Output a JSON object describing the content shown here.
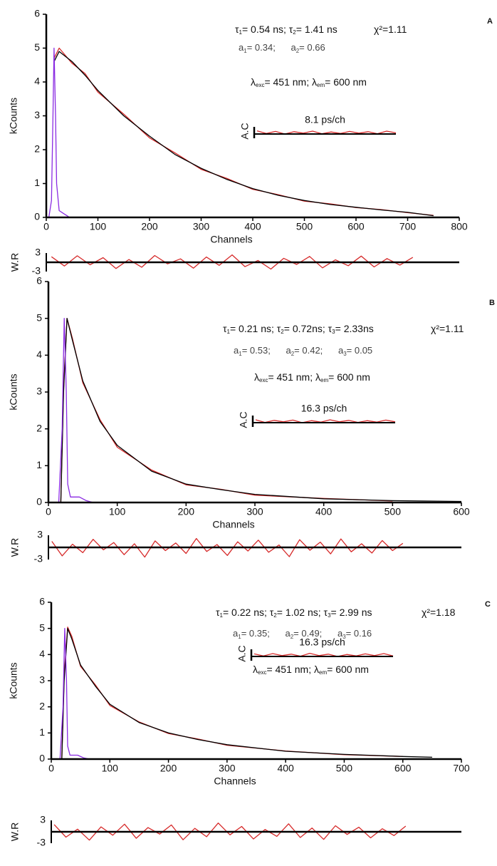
{
  "chart_data": [
    {
      "type": "line",
      "label": "A",
      "x_label": "Channels",
      "y_label": "kCounts",
      "xlim": [
        0,
        800
      ],
      "xticks": [
        0,
        100,
        200,
        300,
        400,
        500,
        600,
        700,
        800
      ],
      "ylim": [
        0,
        6
      ],
      "yticks": [
        0,
        1,
        2,
        3,
        4,
        5,
        6
      ],
      "series": [
        {
          "color": "#8a2be2",
          "x": [
            5,
            10,
            13,
            15,
            18,
            20,
            25,
            30,
            35,
            40,
            45
          ],
          "values": [
            0,
            0.5,
            3,
            5,
            3,
            1,
            0.2,
            0.15,
            0.1,
            0.05,
            0
          ]
        },
        {
          "color": "#d62a2a",
          "x": [
            15,
            25,
            50,
            75,
            100,
            150,
            200,
            250,
            300,
            350,
            400,
            450,
            500,
            550,
            600,
            650,
            700,
            750
          ],
          "values": [
            4.7,
            5.0,
            4.55,
            4.25,
            3.7,
            3.05,
            2.35,
            1.9,
            1.42,
            1.15,
            0.83,
            0.67,
            0.48,
            0.4,
            0.29,
            0.23,
            0.14,
            0.06
          ]
        },
        {
          "color": "#000000",
          "x": [
            15,
            25,
            50,
            75,
            100,
            150,
            200,
            250,
            300,
            350,
            400,
            450,
            500,
            550,
            600,
            650,
            700,
            750
          ],
          "values": [
            4.6,
            4.9,
            4.6,
            4.2,
            3.75,
            3.0,
            2.4,
            1.85,
            1.45,
            1.12,
            0.85,
            0.65,
            0.5,
            0.38,
            0.3,
            0.22,
            0.15,
            0.05
          ]
        }
      ],
      "residuals": {
        "label": "W.R",
        "color": "#d62a2a",
        "ylim": [
          -3,
          3
        ],
        "yticks": [
          3,
          -3
        ],
        "x": [
          10,
          35,
          60,
          85,
          110,
          135,
          160,
          185,
          210,
          235,
          260,
          285,
          310,
          335,
          360,
          385,
          410,
          435,
          460,
          485,
          510,
          535,
          560,
          585,
          610,
          635,
          660,
          685,
          710
        ],
        "values": [
          1.8,
          -1.2,
          2.1,
          -0.8,
          1.5,
          -2.0,
          0.9,
          -1.6,
          2.2,
          -0.5,
          1.1,
          -1.9,
          1.7,
          -1.0,
          2.4,
          -1.4,
          0.6,
          -2.2,
          1.3,
          -0.7,
          1.9,
          -1.8,
          0.8,
          -1.1,
          2.0,
          -1.5,
          1.2,
          -0.9,
          1.6
        ]
      },
      "annotations": [
        [
          "τ",
          "1",
          "= 0.54 ns; τ",
          "2",
          "= 1.41 ns"
        ],
        [
          "χ²=1.11"
        ],
        [
          "a",
          "1",
          "= 0.34;      a",
          "2",
          "= 0.66"
        ],
        [
          "λ",
          "exc",
          "= 451 nm; λ",
          "em",
          "= 600 nm"
        ]
      ],
      "autocorrelation": {
        "label": "A.C",
        "note": "8.1 ps/ch",
        "color": "#d62a2a",
        "values": [
          0.6,
          -0.3,
          0.4,
          -0.5,
          0.3,
          -0.2,
          0.5,
          -0.4,
          0.2,
          -0.3,
          0.4,
          -0.2,
          0.3,
          -0.4,
          0.5,
          -0.1
        ]
      }
    },
    {
      "type": "line",
      "label": "B",
      "x_label": "Channels",
      "y_label": "kCounts",
      "xlim": [
        0,
        600
      ],
      "xticks": [
        0,
        100,
        200,
        300,
        400,
        500,
        600
      ],
      "ylim": [
        0,
        6
      ],
      "yticks": [
        0,
        1,
        2,
        3,
        4,
        5,
        6
      ],
      "series": [
        {
          "color": "#8a2be2",
          "x": [
            15,
            20,
            23,
            26,
            28,
            32,
            45,
            55,
            65
          ],
          "values": [
            0,
            2,
            5,
            3,
            0.5,
            0.15,
            0.15,
            0.05,
            0
          ]
        },
        {
          "color": "#d62a2a",
          "x": [
            18,
            22,
            27,
            35,
            50,
            75,
            100,
            150,
            200,
            250,
            300,
            400,
            500
          ],
          "values": [
            0,
            3.1,
            5.0,
            4.45,
            3.25,
            2.25,
            1.5,
            0.88,
            0.48,
            0.36,
            0.2,
            0.11,
            0.04
          ]
        },
        {
          "color": "#000000",
          "x": [
            18,
            22,
            27,
            35,
            50,
            75,
            100,
            150,
            200,
            250,
            300,
            400,
            500,
            600
          ],
          "values": [
            0,
            3,
            5.0,
            4.4,
            3.3,
            2.2,
            1.55,
            0.85,
            0.5,
            0.35,
            0.22,
            0.1,
            0.05,
            0.03
          ]
        }
      ],
      "residuals": {
        "label": "W.R",
        "color": "#d62a2a",
        "ylim": [
          -3,
          3
        ],
        "yticks": [
          3,
          -3
        ],
        "x": [
          5,
          20,
          35,
          50,
          65,
          80,
          95,
          110,
          125,
          140,
          155,
          170,
          185,
          200,
          215,
          230,
          245,
          260,
          275,
          290,
          305,
          320,
          335,
          350,
          365,
          380,
          395,
          410,
          425,
          440,
          455,
          470,
          485,
          500,
          515
        ],
        "values": [
          1.5,
          -2.1,
          0.8,
          -1.3,
          2.0,
          -0.6,
          1.2,
          -1.8,
          0.9,
          -2.4,
          1.6,
          -0.8,
          1.1,
          -1.5,
          2.2,
          -1.0,
          0.7,
          -2.0,
          1.4,
          -0.9,
          1.8,
          -1.2,
          0.6,
          -2.3,
          1.9,
          -0.7,
          1.3,
          -1.6,
          2.1,
          -1.1,
          0.9,
          -1.4,
          1.7,
          -0.8,
          1.0
        ]
      },
      "annotations": [
        [
          "τ",
          "1",
          "= 0.21 ns; τ",
          "2",
          "= 0.72ns; τ",
          "3",
          "= 2.33ns"
        ],
        [
          "χ²=1.11"
        ],
        [
          "a",
          "1",
          "= 0.53;      a",
          "2",
          "= 0.42;      a",
          "3",
          "= 0.05"
        ],
        [
          "λ",
          "exc",
          "= 451 nm; λ",
          "em",
          "= 600 nm"
        ]
      ],
      "autocorrelation": {
        "label": "A.C",
        "note": "16.3 ps/ch",
        "color": "#d62a2a",
        "values": [
          0.5,
          -0.4,
          0.3,
          -0.2,
          0.4,
          -0.5,
          0.2,
          -0.3,
          0.5,
          -0.2,
          0.3,
          -0.4,
          0.2,
          -0.3,
          0.4,
          -0.2
        ]
      }
    },
    {
      "type": "line",
      "label": "C",
      "x_label": "Channels",
      "y_label": "kCounts",
      "xlim": [
        0,
        700
      ],
      "xticks": [
        0,
        100,
        200,
        300,
        400,
        500,
        600,
        700
      ],
      "ylim": [
        0,
        6
      ],
      "yticks": [
        0,
        1,
        2,
        3,
        4,
        5,
        6
      ],
      "series": [
        {
          "color": "#8a2be2",
          "x": [
            15,
            20,
            23,
            26,
            28,
            32,
            45,
            55,
            65
          ],
          "values": [
            0,
            2,
            5,
            3,
            0.5,
            0.15,
            0.15,
            0.05,
            0
          ]
        },
        {
          "color": "#d62a2a",
          "x": [
            18,
            22,
            28,
            35,
            50,
            75,
            100,
            150,
            200,
            250,
            300,
            400,
            500,
            600
          ],
          "values": [
            0,
            3.2,
            5.05,
            4.7,
            3.55,
            2.85,
            2.05,
            1.42,
            0.98,
            0.77,
            0.53,
            0.31,
            0.17,
            0.1
          ]
        },
        {
          "color": "#000000",
          "x": [
            18,
            22,
            28,
            35,
            50,
            75,
            100,
            150,
            200,
            250,
            300,
            400,
            500,
            600,
            650
          ],
          "values": [
            0,
            3,
            5.0,
            4.6,
            3.6,
            2.8,
            2.1,
            1.4,
            1.0,
            0.75,
            0.55,
            0.3,
            0.18,
            0.1,
            0.07
          ]
        }
      ],
      "residuals": {
        "label": "W.R",
        "color": "#d62a2a",
        "ylim": [
          -3,
          3
        ],
        "yticks": [
          3,
          -3
        ],
        "x": [
          5,
          25,
          45,
          65,
          85,
          105,
          125,
          145,
          165,
          185,
          205,
          225,
          245,
          265,
          285,
          305,
          325,
          345,
          365,
          385,
          405,
          425,
          445,
          465,
          485,
          505,
          525,
          545,
          565,
          585,
          605
        ],
        "values": [
          1.9,
          -1.4,
          0.7,
          -2.2,
          1.3,
          -0.9,
          2.0,
          -1.7,
          1.1,
          -0.6,
          1.8,
          -2.1,
          0.9,
          -1.3,
          2.3,
          -0.8,
          1.4,
          -1.9,
          0.6,
          -1.2,
          2.1,
          -1.5,
          1.0,
          -2.0,
          1.6,
          -0.7,
          1.2,
          -1.6,
          0.8,
          -1.0,
          1.5
        ]
      },
      "annotations": [
        [
          "τ",
          "1",
          "= 0.22 ns; τ",
          "2",
          "= 1.02 ns; τ",
          "3",
          "= 2.99 ns"
        ],
        [
          "χ²=1.18"
        ],
        [
          "a",
          "1",
          "= 0.35;      a",
          "2",
          "= 0.49;      a",
          "3",
          "= 0.16"
        ],
        [
          "λ",
          "exc",
          "= 451 nm; λ",
          "em",
          "= 600 nm"
        ]
      ],
      "autocorrelation": {
        "label": "A.C",
        "note": "16.3 ps/ch",
        "color": "#d62a2a",
        "values": [
          0.4,
          -0.3,
          0.5,
          -0.2,
          0.3,
          -0.4,
          0.6,
          -0.2,
          0.3,
          -0.5,
          0.2,
          -0.3,
          0.4,
          -0.2,
          0.5,
          -0.3
        ]
      }
    }
  ]
}
